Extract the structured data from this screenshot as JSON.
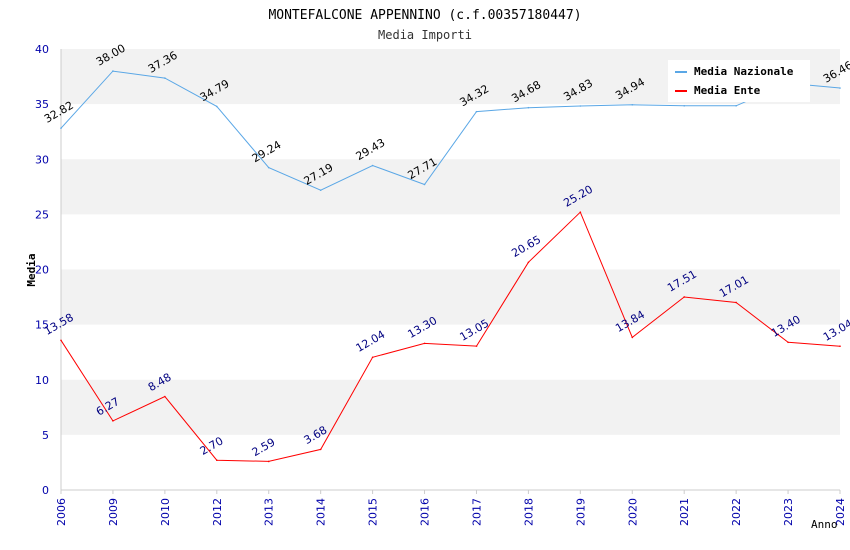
{
  "chart_data": {
    "type": "line",
    "title": "MONTEFALCONE APPENNINO (c.f.00357180447)",
    "subtitle": "Media Importi",
    "xlabel": "Anno",
    "ylabel": "Media",
    "categories": [
      "2006",
      "2009",
      "2010",
      "2012",
      "2013",
      "2014",
      "2015",
      "2016",
      "2017",
      "2018",
      "2019",
      "2020",
      "2021",
      "2022",
      "2023",
      "2024"
    ],
    "ylim": [
      0,
      40
    ],
    "yticks": [
      0,
      5,
      10,
      15,
      20,
      25,
      30,
      35,
      40
    ],
    "grid": "horizontal alternating bands",
    "legend_position": "top-right",
    "series": [
      {
        "name": "Media Nazionale",
        "color": "#5aa7e6",
        "label_color": "#000000",
        "values": [
          32.82,
          38.0,
          37.36,
          34.79,
          29.24,
          27.19,
          29.43,
          27.71,
          34.32,
          34.68,
          34.83,
          34.94,
          34.85,
          34.85,
          36.9,
          36.46
        ],
        "labels": [
          "32.82",
          "38.00",
          "37.36",
          "34.79",
          "29.24",
          "27.19",
          "29.43",
          "27.71",
          "34.32",
          "34.68",
          "34.83",
          "34.94",
          "",
          "",
          "",
          "36.46"
        ]
      },
      {
        "name": "Media Ente",
        "color": "#ff0000",
        "label_color": "#000080",
        "values": [
          13.58,
          6.27,
          8.48,
          2.7,
          2.59,
          3.68,
          12.04,
          13.3,
          13.05,
          20.65,
          25.2,
          13.84,
          17.51,
          17.01,
          13.4,
          13.04
        ],
        "labels": [
          "13.58",
          "6.27",
          "8.48",
          "2.70",
          "2.59",
          "3.68",
          "12.04",
          "13.30",
          "13.05",
          "20.65",
          "25.20",
          "13.84",
          "17.51",
          "17.01",
          "13.40",
          "13.04"
        ]
      }
    ]
  },
  "colors": {
    "band": "#f2f2f2",
    "axis": "#cccccc",
    "tick_label": "#0000aa",
    "title": "#000000",
    "subtitle": "#333333"
  }
}
